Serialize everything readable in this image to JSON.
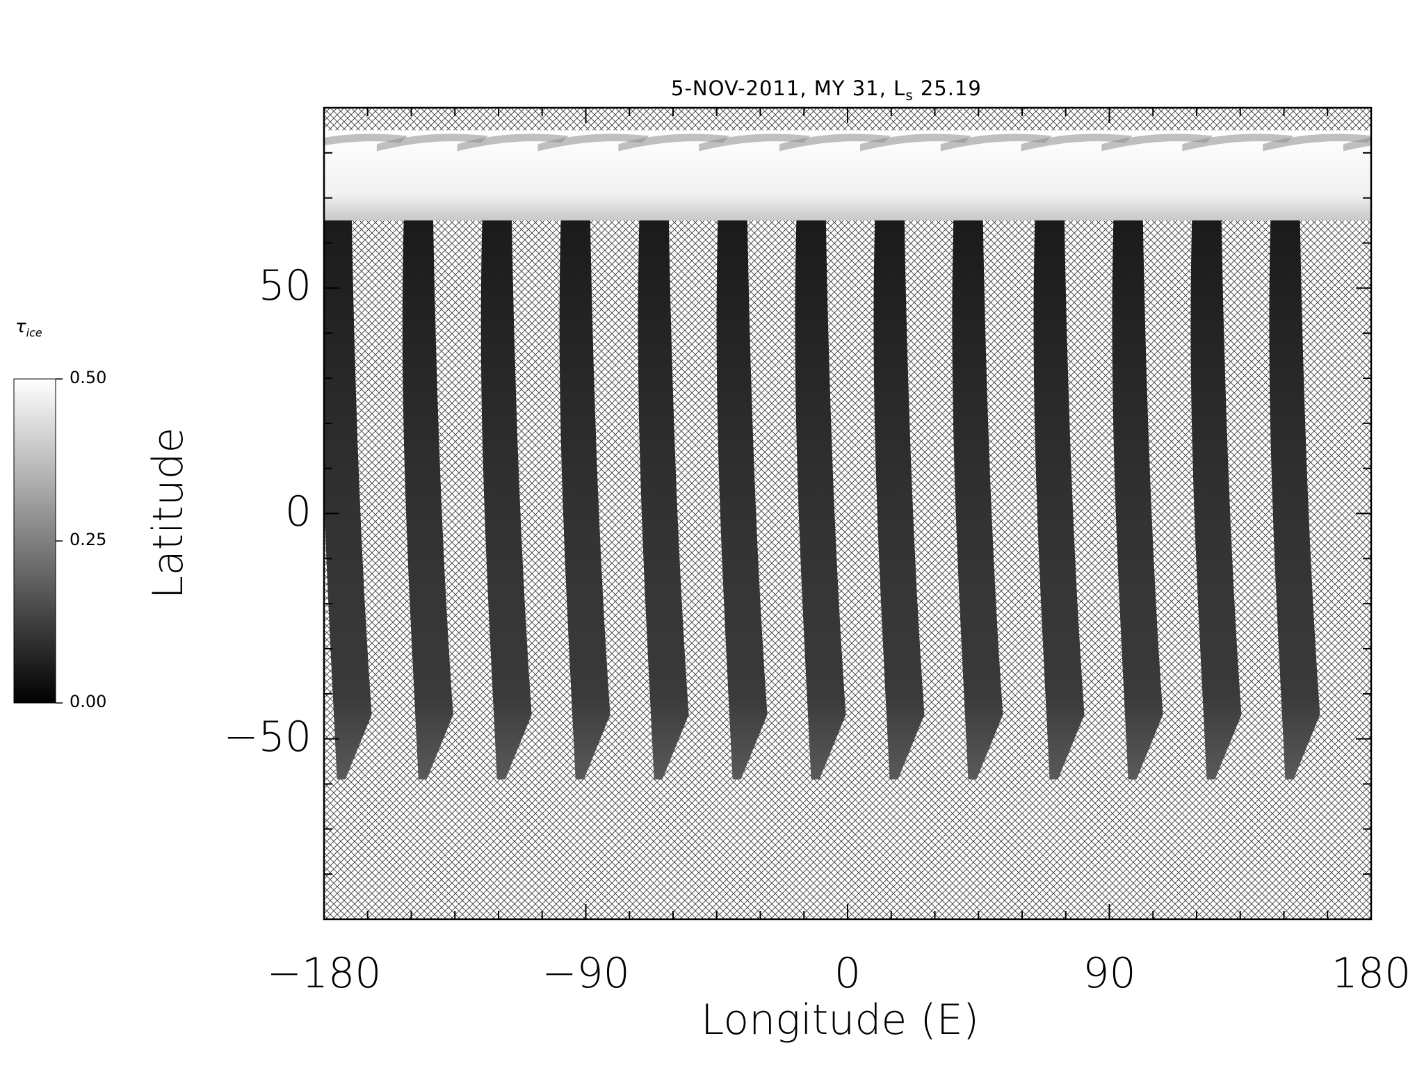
{
  "chart_data": {
    "type": "heatmap",
    "title_main": "5-NOV-2011, MY 31,  L",
    "title_sub": "s",
    "title_value": "25.19",
    "xlabel": "Longitude (E)",
    "ylabel": "Latitude",
    "xlim": [
      -180,
      180
    ],
    "ylim": [
      -90,
      90
    ],
    "x_ticks": [
      -180,
      -90,
      0,
      90,
      180
    ],
    "x_tick_labels": [
      "−180",
      "−90",
      "0",
      "90",
      "180"
    ],
    "y_ticks": [
      -50,
      0,
      50
    ],
    "y_tick_labels": [
      "−50",
      "0",
      "50"
    ],
    "grid": false,
    "no_data_fill": "crosshatch",
    "colorbar": {
      "label": "τ",
      "label_sub": "ice",
      "min": 0.0,
      "max": 0.5,
      "ticks": [
        0.0,
        0.25,
        0.5
      ],
      "tick_labels": [
        "0.00",
        "0.25",
        "0.50"
      ],
      "colormap": "grayscale",
      "placement": "left"
    },
    "swaths": [
      {
        "lon_bottom": -171,
        "lon_top": -176,
        "lat_bottom": -59
      },
      {
        "lon_bottom": -143,
        "lon_top": -148,
        "lat_bottom": -59
      },
      {
        "lon_bottom": -116,
        "lon_top": -121,
        "lat_bottom": -59
      },
      {
        "lon_bottom": -89,
        "lon_top": -94,
        "lat_bottom": -59
      },
      {
        "lon_bottom": -62,
        "lon_top": -67,
        "lat_bottom": -59
      },
      {
        "lon_bottom": -35,
        "lon_top": -40,
        "lat_bottom": -59
      },
      {
        "lon_bottom": -8,
        "lon_top": -13,
        "lat_bottom": -59
      },
      {
        "lon_bottom": 19,
        "lon_top": 14,
        "lat_bottom": -59
      },
      {
        "lon_bottom": 46,
        "lon_top": 41,
        "lat_bottom": -59
      },
      {
        "lon_bottom": 74,
        "lon_top": 69,
        "lat_bottom": -59
      },
      {
        "lon_bottom": 101,
        "lon_top": 96,
        "lat_bottom": -59
      },
      {
        "lon_bottom": 128,
        "lon_top": 123,
        "lat_bottom": -59
      },
      {
        "lon_bottom": 155,
        "lon_top": 150,
        "lat_bottom": -59
      }
    ],
    "polar_cloud_hood": {
      "lat_south_edge": 65,
      "lat_north_edge": 85,
      "tau_ice": 0.5
    }
  }
}
